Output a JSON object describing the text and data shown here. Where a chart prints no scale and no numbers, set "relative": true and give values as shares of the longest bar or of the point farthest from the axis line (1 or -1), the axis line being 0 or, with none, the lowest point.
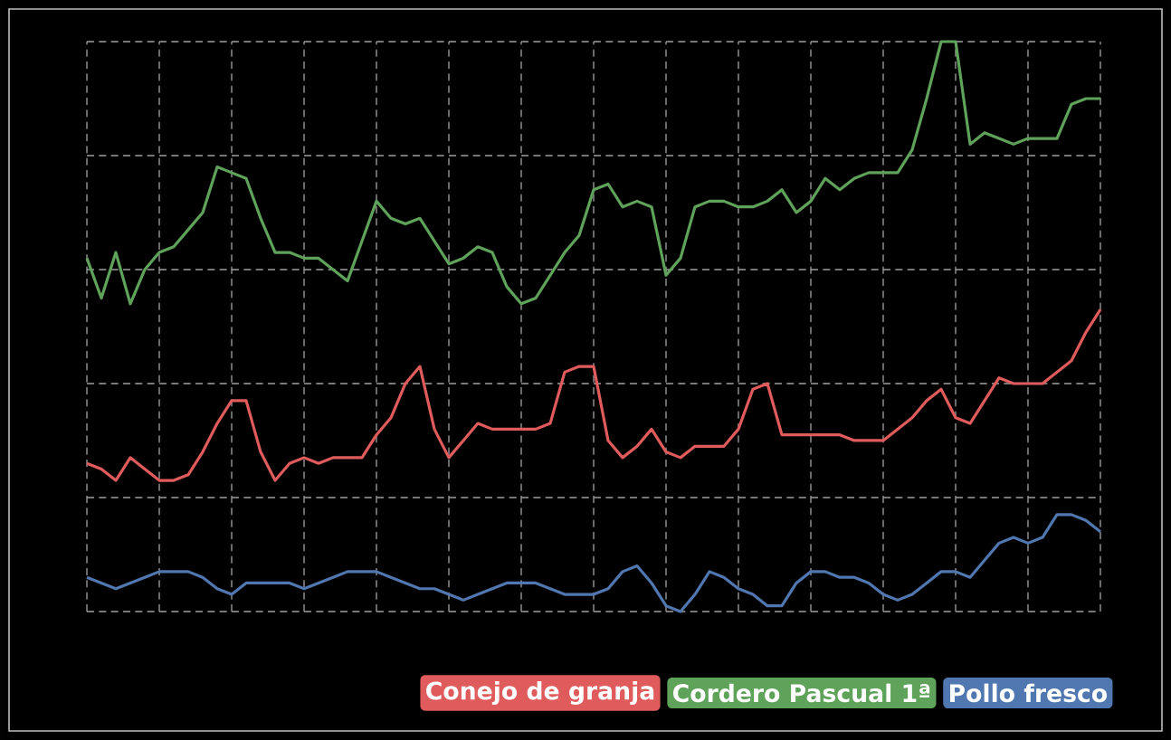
{
  "chart_data": {
    "type": "line",
    "relative": true,
    "grid": true,
    "legend": "bottom right",
    "tick_labels": false,
    "line_style": "solid",
    "categories": [
      null,
      null,
      null,
      null,
      null,
      null,
      null,
      null,
      null,
      null,
      null,
      null,
      null,
      null,
      null,
      null,
      null,
      null,
      null,
      null,
      null,
      null,
      null,
      null,
      null,
      null,
      null,
      null,
      null,
      null,
      null,
      null,
      null,
      null,
      null,
      null,
      null,
      null,
      null,
      null,
      null,
      null,
      null,
      null,
      null,
      null,
      null,
      null,
      null,
      null,
      null,
      null,
      null,
      null,
      null,
      null,
      null,
      null,
      null,
      null,
      null,
      null,
      null,
      null,
      null,
      null,
      null,
      null,
      null,
      null,
      null
    ],
    "series": [
      {
        "name": "Conejo de granja",
        "color": "#e05c5c",
        "values": [
          0.26,
          0.25,
          0.23,
          0.27,
          0.25,
          0.23,
          0.23,
          0.24,
          0.28,
          0.33,
          0.37,
          0.37,
          0.28,
          0.23,
          0.26,
          0.27,
          0.26,
          0.27,
          0.27,
          0.27,
          0.31,
          0.34,
          0.4,
          0.43,
          0.32,
          0.27,
          0.3,
          0.33,
          0.32,
          0.32,
          0.32,
          0.32,
          0.33,
          0.42,
          0.43,
          0.43,
          0.3,
          0.27,
          0.29,
          0.32,
          0.28,
          0.27,
          0.29,
          0.29,
          0.29,
          0.32,
          0.39,
          0.4,
          0.31,
          0.31,
          0.31,
          0.31,
          0.31,
          0.3,
          0.3,
          0.3,
          0.32,
          0.34,
          0.37,
          0.39,
          0.34,
          0.33,
          0.37,
          0.41,
          0.4,
          0.4,
          0.4,
          0.42,
          0.44,
          0.49,
          0.53
        ]
      },
      {
        "name": "Cordero Pascual 1ª",
        "color": "#5fa35a",
        "values": [
          0.62,
          0.55,
          0.63,
          0.54,
          0.6,
          0.63,
          0.64,
          0.67,
          0.7,
          0.78,
          0.77,
          0.76,
          0.69,
          0.63,
          0.63,
          0.62,
          0.62,
          0.6,
          0.58,
          0.65,
          0.72,
          0.69,
          0.68,
          0.69,
          0.65,
          0.61,
          0.62,
          0.64,
          0.63,
          0.57,
          0.54,
          0.55,
          0.59,
          0.63,
          0.66,
          0.74,
          0.75,
          0.71,
          0.72,
          0.71,
          0.59,
          0.62,
          0.71,
          0.72,
          0.72,
          0.71,
          0.71,
          0.72,
          0.74,
          0.7,
          0.72,
          0.76,
          0.74,
          0.76,
          0.77,
          0.77,
          0.77,
          0.81,
          0.9,
          1.0,
          1.0,
          0.82,
          0.84,
          0.83,
          0.82,
          0.83,
          0.83,
          0.83,
          0.89,
          0.9,
          0.9
        ]
      },
      {
        "name": "Pollo fresco",
        "color": "#5077b0",
        "values": [
          0.06,
          0.05,
          0.04,
          0.05,
          0.06,
          0.07,
          0.07,
          0.07,
          0.06,
          0.04,
          0.03,
          0.05,
          0.05,
          0.05,
          0.05,
          0.04,
          0.05,
          0.06,
          0.07,
          0.07,
          0.07,
          0.06,
          0.05,
          0.04,
          0.04,
          0.03,
          0.02,
          0.03,
          0.04,
          0.05,
          0.05,
          0.05,
          0.04,
          0.03,
          0.03,
          0.03,
          0.04,
          0.07,
          0.08,
          0.05,
          0.01,
          0.0,
          0.03,
          0.07,
          0.06,
          0.04,
          0.03,
          0.01,
          0.01,
          0.05,
          0.07,
          0.07,
          0.06,
          0.06,
          0.05,
          0.03,
          0.02,
          0.03,
          0.05,
          0.07,
          0.07,
          0.06,
          0.09,
          0.12,
          0.13,
          0.12,
          0.13,
          0.17,
          0.17,
          0.16,
          0.14
        ]
      }
    ]
  }
}
